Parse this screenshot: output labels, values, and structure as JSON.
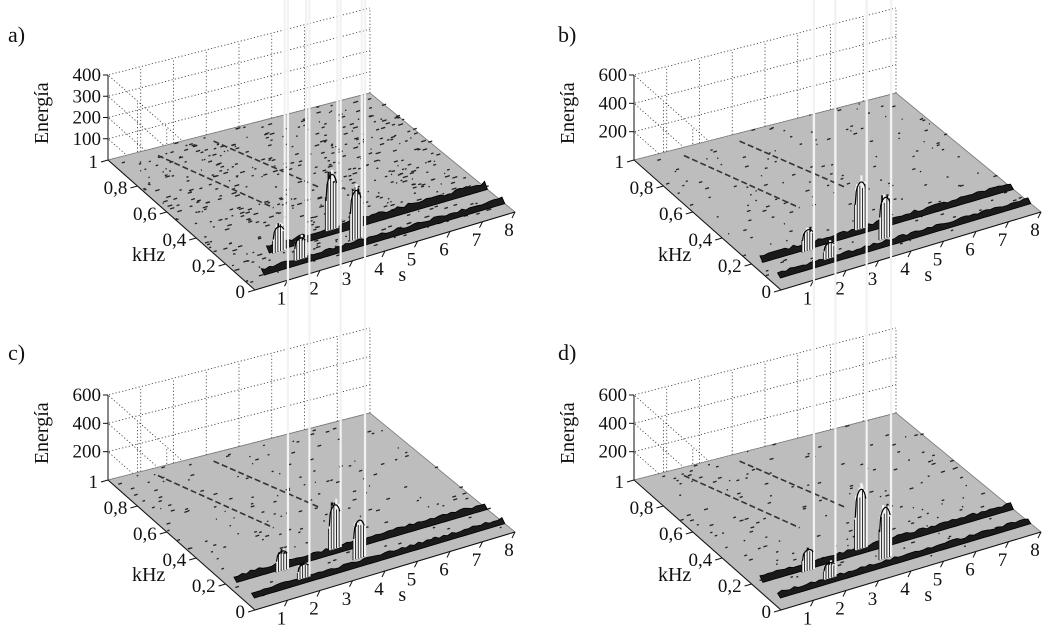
{
  "figure": {
    "panels": [
      "a)",
      "b)",
      "c)",
      "d)"
    ]
  },
  "chart_data": [
    {
      "type": "surface3d",
      "panel_label": "a)",
      "zlabel": "Energía",
      "ylabel": "kHz",
      "xlabel": "s",
      "zticks": [
        "400",
        "300",
        "200",
        "100"
      ],
      "zlim": [
        0,
        400
      ],
      "yticks": [
        "1",
        "0,8",
        "0,6",
        "0,4",
        "0,2",
        "0"
      ],
      "ylim": [
        0,
        1
      ],
      "xticks": [
        "1",
        "2",
        "3",
        "4",
        "5",
        "6",
        "7",
        "8"
      ],
      "xlim": [
        0,
        8
      ],
      "peaks": [
        {
          "t": 1.55,
          "f": 0.18,
          "energy": 120
        },
        {
          "t": 1.85,
          "f": 0.1,
          "energy": 100
        },
        {
          "t": 3.35,
          "f": 0.22,
          "energy": 260
        },
        {
          "t": 3.65,
          "f": 0.12,
          "energy": 230
        }
      ],
      "bands": [
        {
          "f": 0.21,
          "t_start": 1.3,
          "t_end": 8,
          "energy": 20
        },
        {
          "f": 0.09,
          "t_start": 0.6,
          "t_end": 8,
          "energy": 15
        }
      ],
      "noise": "high"
    },
    {
      "type": "surface3d",
      "panel_label": "b)",
      "zlabel": "Energía",
      "ylabel": "kHz",
      "xlabel": "s",
      "zticks": [
        "600",
        "400",
        "200"
      ],
      "zlim": [
        0,
        600
      ],
      "yticks": [
        "1",
        "0,8",
        "0,6",
        "0,4",
        "0,2",
        "0"
      ],
      "ylim": [
        0,
        1
      ],
      "xticks": [
        "1",
        "2",
        "3",
        "4",
        "5",
        "6",
        "7",
        "8"
      ],
      "xlim": [
        0,
        8
      ],
      "peaks": [
        {
          "t": 1.65,
          "f": 0.18,
          "energy": 150
        },
        {
          "t": 1.95,
          "f": 0.1,
          "energy": 110
        },
        {
          "t": 3.45,
          "f": 0.22,
          "energy": 330
        },
        {
          "t": 3.75,
          "f": 0.12,
          "energy": 290
        }
      ],
      "bands": [
        {
          "f": 0.21,
          "t_start": 0.3,
          "t_end": 8,
          "energy": 25
        },
        {
          "f": 0.09,
          "t_start": 0.3,
          "t_end": 8,
          "energy": 20
        }
      ],
      "noise": "low"
    },
    {
      "type": "surface3d",
      "panel_label": "c)",
      "zlabel": "Energía",
      "ylabel": "kHz",
      "xlabel": "s",
      "zticks": [
        "600",
        "400",
        "200"
      ],
      "zlim": [
        0,
        600
      ],
      "yticks": [
        "1",
        "0,8",
        "0,6",
        "0,4",
        "0,2",
        "0"
      ],
      "ylim": [
        0,
        1
      ],
      "xticks": [
        "1",
        "2",
        "3",
        "4",
        "5",
        "6",
        "7",
        "8"
      ],
      "xlim": [
        0,
        8
      ],
      "peaks": [
        {
          "t": 1.65,
          "f": 0.18,
          "energy": 140
        },
        {
          "t": 1.95,
          "f": 0.1,
          "energy": 100
        },
        {
          "t": 3.45,
          "f": 0.22,
          "energy": 310
        },
        {
          "t": 3.75,
          "f": 0.12,
          "energy": 270
        }
      ],
      "bands": [
        {
          "f": 0.21,
          "t_start": 0.3,
          "t_end": 8,
          "energy": 25
        },
        {
          "f": 0.09,
          "t_start": 0.3,
          "t_end": 8,
          "energy": 20
        }
      ],
      "noise": "low"
    },
    {
      "type": "surface3d",
      "panel_label": "d)",
      "zlabel": "Energía",
      "ylabel": "kHz",
      "xlabel": "s",
      "zticks": [
        "600",
        "400",
        "200"
      ],
      "zlim": [
        0,
        600
      ],
      "yticks": [
        "1",
        "0,8",
        "0,6",
        "0,4",
        "0,2",
        "0"
      ],
      "ylim": [
        0,
        1
      ],
      "xticks": [
        "1",
        "2",
        "3",
        "4",
        "5",
        "6",
        "7",
        "8"
      ],
      "xlim": [
        0,
        8
      ],
      "peaks": [
        {
          "t": 1.65,
          "f": 0.18,
          "energy": 150
        },
        {
          "t": 1.95,
          "f": 0.1,
          "energy": 110
        },
        {
          "t": 3.45,
          "f": 0.22,
          "energy": 420
        },
        {
          "t": 3.75,
          "f": 0.12,
          "energy": 360
        }
      ],
      "bands": [
        {
          "f": 0.21,
          "t_start": 0.3,
          "t_end": 8,
          "energy": 25
        },
        {
          "f": 0.09,
          "t_start": 0.3,
          "t_end": 8,
          "energy": 20
        }
      ],
      "noise": "low"
    }
  ]
}
